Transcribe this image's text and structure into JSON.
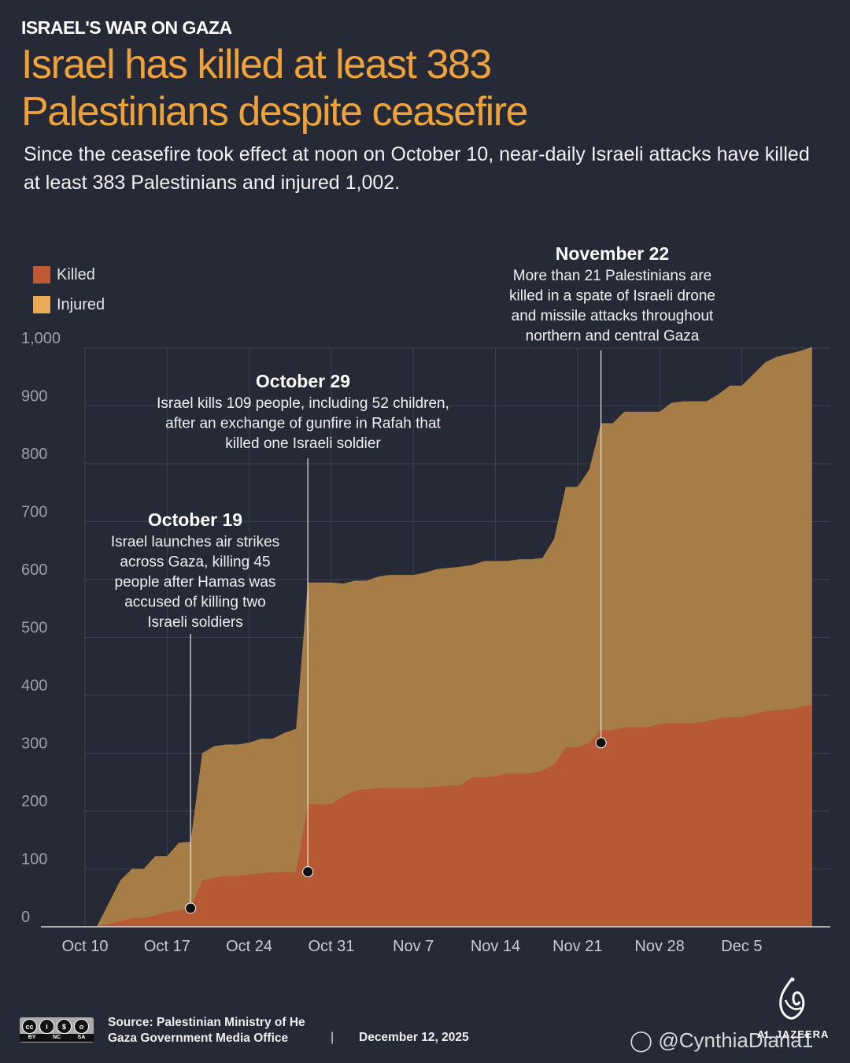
{
  "kicker": "ISRAEL'S WAR ON GAZA",
  "headline": {
    "line1": "Israel has killed at least 383",
    "line2": "Palestinians despite ceasefire"
  },
  "subtitle": "Since the ceasefire took effect at noon on October 10, near-daily Israeli attacks have killed at least 383 Palestinians and injured 1,002.",
  "colors": {
    "background": "#262a36",
    "killed": "#b75934",
    "injured": "#a67d46",
    "headline": "#f0a23a",
    "legend_killed": "#c05a35",
    "legend_injured": "#eaa955"
  },
  "legend": {
    "items": [
      {
        "label": "Killed",
        "color_key": "legend_killed"
      },
      {
        "label": "Injured",
        "color_key": "legend_injured"
      }
    ]
  },
  "chart_data": {
    "type": "area",
    "stacked": "overlapping",
    "title": "Israel has killed at least 383 Palestinians despite ceasefire",
    "xlabel": "",
    "ylabel": "",
    "ylim": [
      0,
      1000
    ],
    "yticks": [
      0,
      100,
      200,
      300,
      400,
      500,
      600,
      700,
      800,
      900,
      1000
    ],
    "ytick_labels": [
      "0",
      "100",
      "200",
      "300",
      "400",
      "500",
      "600",
      "700",
      "800",
      "900",
      "1,000"
    ],
    "xticks": [
      0,
      7,
      14,
      21,
      28,
      35,
      42,
      49,
      56
    ],
    "xtick_labels": [
      "Oct 10",
      "Oct 17",
      "Oct 24",
      "Oct 31",
      "Nov 7",
      "Nov 14",
      "Nov 21",
      "Nov 28",
      "Dec 5"
    ],
    "x_unit": "days since Oct 10",
    "grid": true,
    "series": [
      {
        "name": "Injured",
        "points": [
          [
            1,
            0
          ],
          [
            2,
            40
          ],
          [
            3,
            80
          ],
          [
            4,
            100
          ],
          [
            5,
            100
          ],
          [
            6,
            122
          ],
          [
            7,
            122
          ],
          [
            8,
            145
          ],
          [
            9,
            147
          ],
          [
            10,
            300
          ],
          [
            11,
            312
          ],
          [
            12,
            315
          ],
          [
            13,
            315
          ],
          [
            14,
            318
          ],
          [
            15,
            325
          ],
          [
            16,
            325
          ],
          [
            17,
            335
          ],
          [
            18,
            342
          ],
          [
            19,
            595
          ],
          [
            20,
            595
          ],
          [
            21,
            595
          ],
          [
            22,
            593
          ],
          [
            23,
            598
          ],
          [
            24,
            598
          ],
          [
            25,
            605
          ],
          [
            26,
            608
          ],
          [
            27,
            608
          ],
          [
            28,
            608
          ],
          [
            29,
            612
          ],
          [
            30,
            618
          ],
          [
            31,
            620
          ],
          [
            32,
            622
          ],
          [
            33,
            625
          ],
          [
            34,
            632
          ],
          [
            35,
            632
          ],
          [
            36,
            632
          ],
          [
            37,
            635
          ],
          [
            38,
            635
          ],
          [
            39,
            637
          ],
          [
            40,
            670
          ],
          [
            41,
            760
          ],
          [
            42,
            760
          ],
          [
            43,
            790
          ],
          [
            44,
            870
          ],
          [
            45,
            870
          ],
          [
            46,
            890
          ],
          [
            47,
            890
          ],
          [
            48,
            890
          ],
          [
            49,
            890
          ],
          [
            50,
            905
          ],
          [
            51,
            908
          ],
          [
            52,
            908
          ],
          [
            53,
            908
          ],
          [
            54,
            920
          ],
          [
            55,
            935
          ],
          [
            56,
            935
          ],
          [
            57,
            955
          ],
          [
            58,
            975
          ],
          [
            59,
            985
          ],
          [
            60,
            990
          ],
          [
            61,
            995
          ],
          [
            62,
            1002
          ]
        ]
      },
      {
        "name": "Killed",
        "points": [
          [
            1,
            0
          ],
          [
            2,
            5
          ],
          [
            3,
            10
          ],
          [
            4,
            15
          ],
          [
            5,
            15
          ],
          [
            6,
            20
          ],
          [
            7,
            25
          ],
          [
            8,
            28
          ],
          [
            9,
            32
          ],
          [
            10,
            80
          ],
          [
            11,
            85
          ],
          [
            12,
            88
          ],
          [
            13,
            88
          ],
          [
            14,
            90
          ],
          [
            15,
            92
          ],
          [
            16,
            94
          ],
          [
            17,
            94
          ],
          [
            18,
            95
          ],
          [
            19,
            212
          ],
          [
            20,
            212
          ],
          [
            21,
            212
          ],
          [
            22,
            225
          ],
          [
            23,
            235
          ],
          [
            24,
            238
          ],
          [
            25,
            240
          ],
          [
            26,
            240
          ],
          [
            27,
            240
          ],
          [
            28,
            240
          ],
          [
            29,
            240
          ],
          [
            30,
            242
          ],
          [
            31,
            244
          ],
          [
            32,
            244
          ],
          [
            33,
            258
          ],
          [
            34,
            258
          ],
          [
            35,
            260
          ],
          [
            36,
            265
          ],
          [
            37,
            265
          ],
          [
            38,
            265
          ],
          [
            39,
            270
          ],
          [
            40,
            280
          ],
          [
            41,
            310
          ],
          [
            42,
            310
          ],
          [
            43,
            318
          ],
          [
            44,
            340
          ],
          [
            45,
            340
          ],
          [
            46,
            345
          ],
          [
            47,
            345
          ],
          [
            48,
            345
          ],
          [
            49,
            350
          ],
          [
            50,
            352
          ],
          [
            51,
            352
          ],
          [
            52,
            352
          ],
          [
            53,
            355
          ],
          [
            54,
            360
          ],
          [
            55,
            362
          ],
          [
            56,
            362
          ],
          [
            57,
            368
          ],
          [
            58,
            372
          ],
          [
            59,
            374
          ],
          [
            60,
            376
          ],
          [
            61,
            380
          ],
          [
            62,
            383
          ]
        ]
      }
    ],
    "annotations": [
      {
        "date": "October 19",
        "text": "Israel launches air strikes across Gaza, killing 45 people after Hamas was accused of killing two Israeli soldiers",
        "lines": [
          "Israel launches air strikes",
          "across Gaza, killing 45",
          "people after Hamas was",
          "accused of killing two",
          "Israeli soldiers"
        ],
        "x": 9,
        "y": 32
      },
      {
        "date": "October 29",
        "text": "Israel kills 109 people, including 52 children, after an exchange of gunfire in Rafah that killed one Israeli soldier",
        "lines": [
          "Israel kills 109 people, including 52 children,",
          "after an exchange of gunfire in Rafah that",
          "killed one Israeli soldier"
        ],
        "x": 19,
        "y": 95
      },
      {
        "date": "November 22",
        "text": "More than 21 Palestinians are killed in a spate of Israeli drone and missile attacks throughout northern and central Gaza",
        "lines": [
          "More than 21 Palestinians are",
          "killed in a spate of Israeli drone",
          "and missile attacks throughout",
          "northern and central Gaza"
        ],
        "x": 44,
        "y": 318
      }
    ]
  },
  "footer": {
    "source_label": "Source:  Palestinian Ministry of He",
    "source_line2": "Gaza Government Media Office",
    "separator": "|",
    "date": "December 12, 2025",
    "license_badge": [
      "BY",
      "NC",
      "SA"
    ],
    "license_icons": [
      "cc",
      "i",
      "$",
      "o"
    ],
    "watermark": "@CynthiaDiana1",
    "brand": "AL JAZEERA"
  }
}
